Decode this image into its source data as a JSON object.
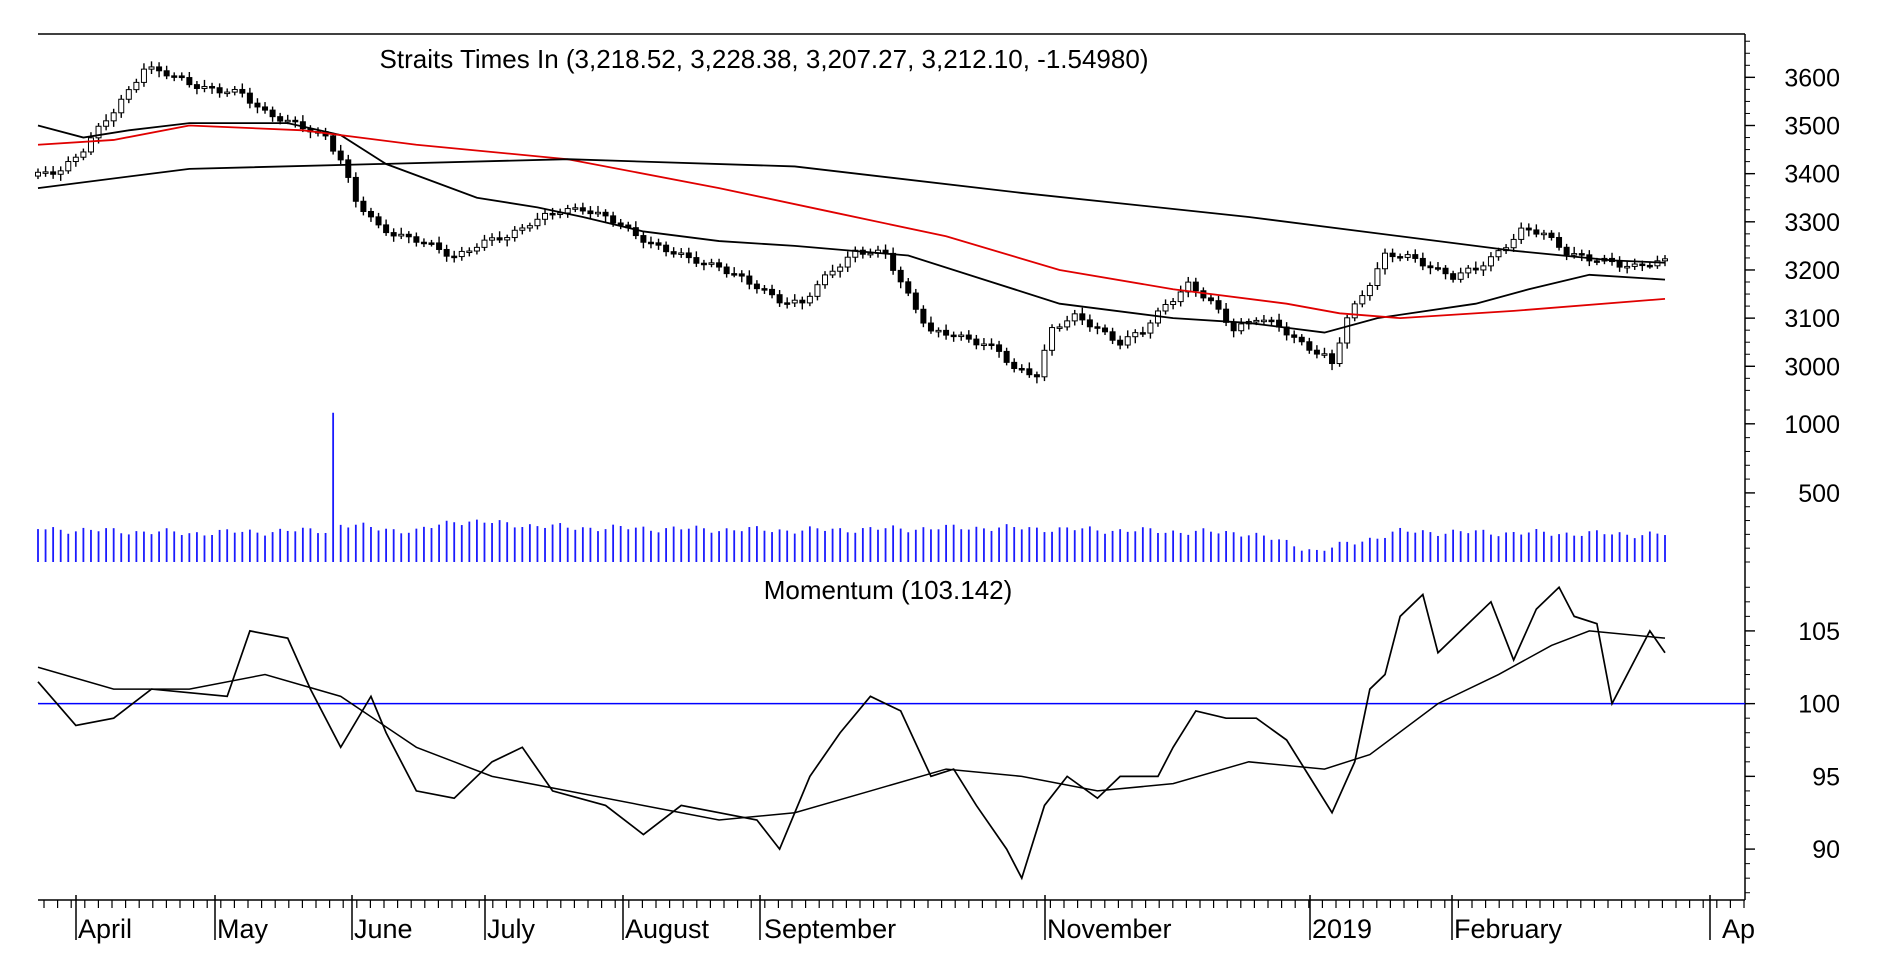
{
  "chart_data": [
    {
      "type": "candlestick",
      "title": "Straits Times In (3,218.52, 3,228.38, 3,207.27, 3,212.10, -1.54980)",
      "y_ticks": [
        3000,
        3100,
        3200,
        3300,
        3400,
        3500,
        3600
      ],
      "ylim": [
        2930,
        3690
      ],
      "x_labels": [
        "April",
        "May",
        "June",
        "July",
        "August",
        "September",
        "November",
        "2019",
        "February",
        "Ap"
      ],
      "close_path": [
        [
          0,
          3395
        ],
        [
          3,
          3410
        ],
        [
          6,
          3450
        ],
        [
          10,
          3530
        ],
        [
          14,
          3620
        ],
        [
          18,
          3600
        ],
        [
          24,
          3570
        ],
        [
          27,
          3565
        ],
        [
          30,
          3530
        ],
        [
          33,
          3505
        ],
        [
          38,
          3480
        ],
        [
          40,
          3430
        ],
        [
          42,
          3340
        ],
        [
          45,
          3290
        ],
        [
          50,
          3260
        ],
        [
          55,
          3230
        ],
        [
          58,
          3250
        ],
        [
          62,
          3270
        ],
        [
          65,
          3300
        ],
        [
          69,
          3320
        ],
        [
          72,
          3330
        ],
        [
          75,
          3310
        ],
        [
          78,
          3280
        ],
        [
          82,
          3250
        ],
        [
          86,
          3220
        ],
        [
          90,
          3210
        ],
        [
          94,
          3170
        ],
        [
          98,
          3140
        ],
        [
          101,
          3130
        ],
        [
          105,
          3200
        ],
        [
          108,
          3240
        ],
        [
          112,
          3230
        ],
        [
          115,
          3150
        ],
        [
          118,
          3070
        ],
        [
          122,
          3060
        ],
        [
          125,
          3050
        ],
        [
          127,
          3030
        ],
        [
          129,
          2990
        ],
        [
          132,
          2985
        ],
        [
          134,
          3080
        ],
        [
          137,
          3100
        ],
        [
          140,
          3080
        ],
        [
          143,
          3050
        ],
        [
          146,
          3070
        ],
        [
          149,
          3130
        ],
        [
          152,
          3170
        ],
        [
          155,
          3130
        ],
        [
          158,
          3080
        ],
        [
          161,
          3100
        ],
        [
          164,
          3080
        ],
        [
          167,
          3050
        ],
        [
          170,
          3020
        ],
        [
          171,
          3000
        ],
        [
          173,
          3100
        ],
        [
          175,
          3150
        ],
        [
          178,
          3230
        ],
        [
          181,
          3225
        ],
        [
          184,
          3210
        ],
        [
          187,
          3185
        ],
        [
          190,
          3200
        ],
        [
          193,
          3240
        ],
        [
          196,
          3280
        ],
        [
          199,
          3275
        ],
        [
          202,
          3240
        ],
        [
          205,
          3220
        ],
        [
          208,
          3215
        ],
        [
          211,
          3210
        ],
        [
          215,
          3215
        ]
      ],
      "series": [
        {
          "name": "",
          "color": "#000000",
          "points": [
            [
              0,
              3500
            ],
            [
              6,
              3475
            ],
            [
              12,
              3490
            ],
            [
              20,
              3505
            ],
            [
              33,
              3505
            ],
            [
              40,
              3480
            ],
            [
              46,
              3420
            ],
            [
              52,
              3385
            ],
            [
              58,
              3350
            ],
            [
              66,
              3330
            ],
            [
              72,
              3310
            ],
            [
              80,
              3280
            ],
            [
              90,
              3260
            ],
            [
              100,
              3250
            ],
            [
              115,
              3230
            ],
            [
              125,
              3180
            ],
            [
              135,
              3130
            ],
            [
              150,
              3100
            ],
            [
              160,
              3090
            ],
            [
              170,
              3070
            ],
            [
              177,
              3100
            ],
            [
              190,
              3130
            ],
            [
              197,
              3160
            ],
            [
              205,
              3190
            ],
            [
              215,
              3180
            ]
          ]
        },
        {
          "name": "",
          "color": "#e00000",
          "points": [
            [
              0,
              3460
            ],
            [
              10,
              3470
            ],
            [
              20,
              3500
            ],
            [
              35,
              3490
            ],
            [
              50,
              3460
            ],
            [
              70,
              3430
            ],
            [
              90,
              3370
            ],
            [
              105,
              3320
            ],
            [
              120,
              3270
            ],
            [
              135,
              3200
            ],
            [
              150,
              3160
            ],
            [
              165,
              3130
            ],
            [
              172,
              3110
            ],
            [
              180,
              3100
            ],
            [
              195,
              3115
            ],
            [
              215,
              3140
            ]
          ]
        },
        {
          "name": "",
          "color": "#000000",
          "points": [
            [
              0,
              3370
            ],
            [
              20,
              3410
            ],
            [
              45,
              3420
            ],
            [
              70,
              3430
            ],
            [
              100,
              3415
            ],
            [
              130,
              3360
            ],
            [
              160,
              3310
            ],
            [
              180,
              3270
            ],
            [
              195,
              3240
            ],
            [
              208,
              3220
            ],
            [
              215,
              3215
            ]
          ]
        }
      ]
    },
    {
      "type": "bar",
      "y_ticks": [
        500,
        1000
      ],
      "ylim": [
        0,
        1100
      ],
      "volume_path": [
        [
          0,
          240
        ],
        [
          20,
          210
        ],
        [
          38,
          230
        ],
        [
          39,
          1080
        ],
        [
          40,
          270
        ],
        [
          50,
          220
        ],
        [
          55,
          300
        ],
        [
          70,
          250
        ],
        [
          100,
          230
        ],
        [
          125,
          250
        ],
        [
          160,
          210
        ],
        [
          169,
          80
        ],
        [
          180,
          220
        ],
        [
          215,
          200
        ]
      ]
    },
    {
      "type": "line",
      "title": "Momentum (103.142)",
      "y_ticks": [
        90,
        95,
        100,
        105
      ],
      "ylim": [
        86.5,
        108.5
      ],
      "reference_line": 100,
      "series": [
        {
          "name": "",
          "color": "#000000",
          "points": [
            [
              0,
              101.5
            ],
            [
              5,
              98.5
            ],
            [
              10,
              99
            ],
            [
              15,
              101
            ],
            [
              25,
              100.5
            ],
            [
              28,
              105
            ],
            [
              33,
              104.5
            ],
            [
              36,
              101
            ],
            [
              40,
              97
            ],
            [
              44,
              100.5
            ],
            [
              46,
              98
            ],
            [
              50,
              94
            ],
            [
              55,
              93.5
            ],
            [
              60,
              96
            ],
            [
              64,
              97
            ],
            [
              68,
              94
            ],
            [
              75,
              93
            ],
            [
              80,
              91
            ],
            [
              85,
              93
            ],
            [
              90,
              92.5
            ],
            [
              95,
              92
            ],
            [
              98,
              90
            ],
            [
              102,
              95
            ],
            [
              106,
              98
            ],
            [
              110,
              100.5
            ],
            [
              114,
              99.5
            ],
            [
              118,
              95
            ],
            [
              121,
              95.5
            ],
            [
              124,
              93
            ],
            [
              128,
              90
            ],
            [
              130,
              88
            ],
            [
              133,
              93
            ],
            [
              136,
              95
            ],
            [
              140,
              93.5
            ],
            [
              143,
              95
            ],
            [
              148,
              95
            ],
            [
              150,
              97
            ],
            [
              153,
              99.5
            ],
            [
              157,
              99
            ],
            [
              161,
              99
            ],
            [
              165,
              97.5
            ],
            [
              168,
              95
            ],
            [
              171,
              92.5
            ],
            [
              174,
              96
            ],
            [
              176,
              101
            ],
            [
              178,
              102
            ],
            [
              180,
              106
            ],
            [
              183,
              107.5
            ],
            [
              185,
              103.5
            ],
            [
              188,
              105
            ],
            [
              192,
              107
            ],
            [
              195,
              103
            ],
            [
              198,
              106.5
            ],
            [
              201,
              108
            ],
            [
              203,
              106
            ],
            [
              206,
              105.5
            ],
            [
              208,
              100
            ],
            [
              211,
              103
            ],
            [
              213,
              105
            ],
            [
              215,
              103.5
            ]
          ]
        },
        {
          "name": "",
          "color": "#000000",
          "points": [
            [
              0,
              102.5
            ],
            [
              10,
              101
            ],
            [
              20,
              101
            ],
            [
              30,
              102
            ],
            [
              40,
              100.5
            ],
            [
              50,
              97
            ],
            [
              60,
              95
            ],
            [
              70,
              94
            ],
            [
              80,
              93
            ],
            [
              90,
              92
            ],
            [
              100,
              92.5
            ],
            [
              110,
              94
            ],
            [
              120,
              95.5
            ],
            [
              130,
              95
            ],
            [
              140,
              94
            ],
            [
              150,
              94.5
            ],
            [
              160,
              96
            ],
            [
              170,
              95.5
            ],
            [
              176,
              96.5
            ],
            [
              185,
              100
            ],
            [
              193,
              102
            ],
            [
              200,
              104
            ],
            [
              205,
              105
            ],
            [
              215,
              104.5
            ]
          ]
        }
      ]
    }
  ]
}
